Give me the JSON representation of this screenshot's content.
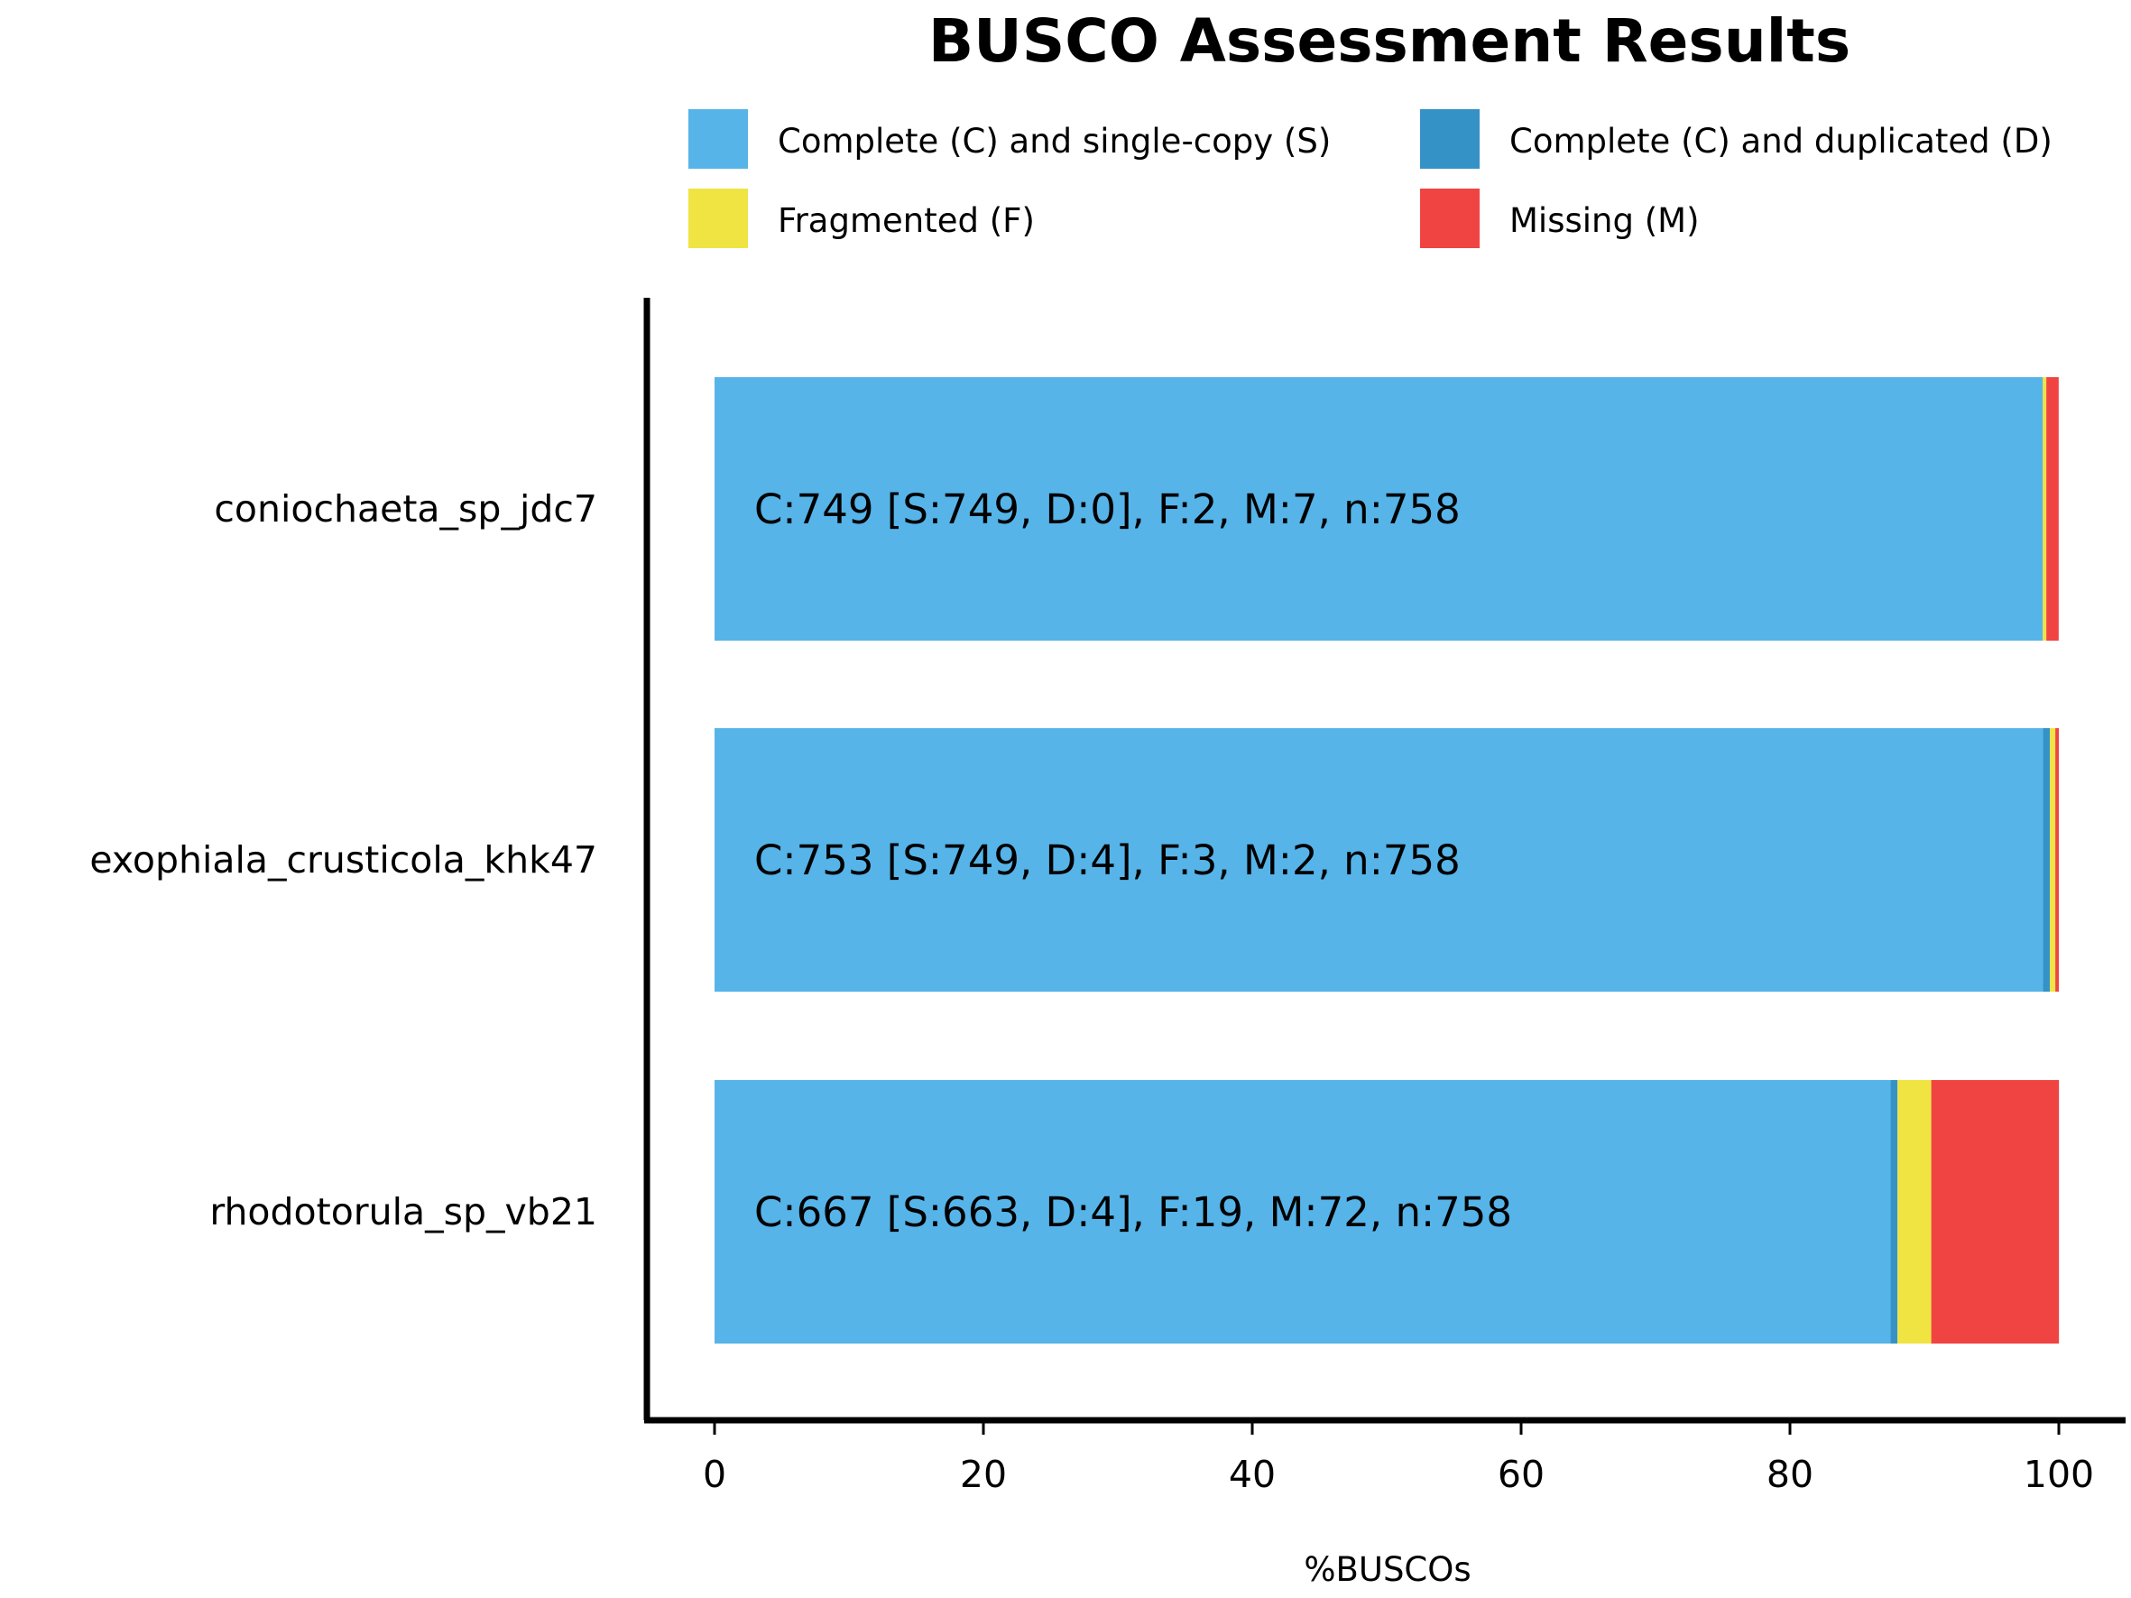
{
  "chart_data": {
    "type": "bar",
    "orientation": "horizontal",
    "stacked": true,
    "title": "BUSCO Assessment Results",
    "xlabel": "%BUSCOs",
    "ylabel": "",
    "xlim": [
      0,
      100
    ],
    "xticks": [
      "0",
      "20",
      "40",
      "60",
      "80",
      "100"
    ],
    "categories": [
      "coniochaeta_sp_jdc7",
      "exophiala_crusticola_khk47",
      "rhodotorula_sp_vb21"
    ],
    "series": [
      {
        "name": "Complete (C) and single-copy (S)",
        "color": "#56B4E9",
        "values": [
          98.81,
          98.81,
          87.47
        ]
      },
      {
        "name": "Complete (C) and duplicated (D)",
        "color": "#3492C7",
        "values": [
          0.0,
          0.53,
          0.53
        ]
      },
      {
        "name": "Fragmented (F)",
        "color": "#F0E442",
        "values": [
          0.26,
          0.4,
          2.51
        ]
      },
      {
        "name": "Missing (M)",
        "color": "#F04442",
        "values": [
          0.92,
          0.26,
          9.5
        ]
      }
    ],
    "bar_labels": [
      "C:749 [S:749, D:0], F:2, M:7, n:758",
      "C:753 [S:749, D:4], F:3, M:2, n:758",
      "C:667 [S:663, D:4], F:19, M:72, n:758"
    ],
    "legend_position": "top",
    "grid": false
  }
}
